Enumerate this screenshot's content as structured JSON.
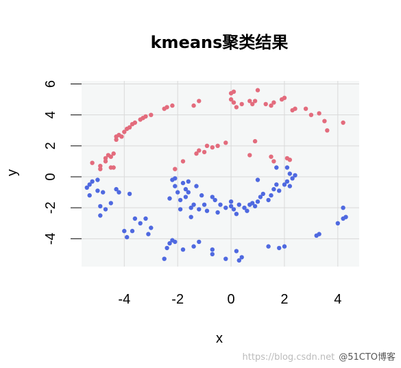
{
  "chart_data": {
    "type": "scatter",
    "title": "kmeans聚类结果",
    "xlabel": "x",
    "ylabel": "y",
    "xlim": [
      -5.6,
      4.8
    ],
    "ylim": [
      -5.8,
      6.2
    ],
    "xticks": [
      -4,
      -2,
      0,
      2,
      4
    ],
    "yticks": [
      -4,
      -2,
      0,
      2,
      4,
      6
    ],
    "grid": true,
    "series": [
      {
        "color": "#E36C7D",
        "points": [
          [
            -5.2,
            0.9
          ],
          [
            -4.9,
            0.5
          ],
          [
            -4.9,
            0.7
          ],
          [
            -4.7,
            1.0
          ],
          [
            -4.7,
            1.2
          ],
          [
            -4.6,
            1.4
          ],
          [
            -4.5,
            1.3
          ],
          [
            -4.4,
            1.5
          ],
          [
            -4.5,
            0.6
          ],
          [
            -4.4,
            0.6
          ],
          [
            -4.3,
            2.4
          ],
          [
            -4.3,
            2.6
          ],
          [
            -4.2,
            2.7
          ],
          [
            -4.1,
            2.6
          ],
          [
            -4.0,
            2.9
          ],
          [
            -3.9,
            3.1
          ],
          [
            -3.8,
            3.2
          ],
          [
            -3.7,
            3.4
          ],
          [
            -3.6,
            3.5
          ],
          [
            -3.4,
            3.7
          ],
          [
            -3.3,
            3.8
          ],
          [
            -3.2,
            3.9
          ],
          [
            -3.0,
            4.0
          ],
          [
            -2.5,
            4.4
          ],
          [
            -2.4,
            4.5
          ],
          [
            -2.2,
            4.6
          ],
          [
            -1.4,
            4.6
          ],
          [
            -1.2,
            4.9
          ],
          [
            -1.3,
            1.5
          ],
          [
            -1.2,
            1.7
          ],
          [
            -1.0,
            1.6
          ],
          [
            -0.9,
            2.0
          ],
          [
            -0.7,
            1.9
          ],
          [
            -0.5,
            2.0
          ],
          [
            -0.2,
            2.2
          ],
          [
            -1.8,
            1.0
          ],
          [
            -2.1,
            0.5
          ],
          [
            0.0,
            5.4
          ],
          [
            0.0,
            5.0
          ],
          [
            0.1,
            5.5
          ],
          [
            0.1,
            4.8
          ],
          [
            0.2,
            4.5
          ],
          [
            0.4,
            4.7
          ],
          [
            0.7,
            4.9
          ],
          [
            0.8,
            4.7
          ],
          [
            0.9,
            4.9
          ],
          [
            1.0,
            5.6
          ],
          [
            1.3,
            4.7
          ],
          [
            1.5,
            4.6
          ],
          [
            1.6,
            4.8
          ],
          [
            1.9,
            5.0
          ],
          [
            2.0,
            5.1
          ],
          [
            2.3,
            4.3
          ],
          [
            2.4,
            4.4
          ],
          [
            2.8,
            4.4
          ],
          [
            3.0,
            4.0
          ],
          [
            3.3,
            4.1
          ],
          [
            3.5,
            3.6
          ],
          [
            3.6,
            3.0
          ],
          [
            4.2,
            3.5
          ],
          [
            0.9,
            2.3
          ],
          [
            1.5,
            1.3
          ],
          [
            1.6,
            1.0
          ],
          [
            2.1,
            1.2
          ],
          [
            2.2,
            1.1
          ],
          [
            0.7,
            1.4
          ]
        ]
      },
      {
        "color": "#4F69E0",
        "points": [
          [
            -5.4,
            -0.7
          ],
          [
            -5.3,
            -0.5
          ],
          [
            -5.2,
            -0.3
          ],
          [
            -5.0,
            -0.2
          ],
          [
            -5.0,
            -0.9
          ],
          [
            -5.3,
            -1.2
          ],
          [
            -4.8,
            -1.0
          ],
          [
            -4.9,
            -1.9
          ],
          [
            -4.7,
            -2.1
          ],
          [
            -4.9,
            -2.5
          ],
          [
            -4.5,
            -1.7
          ],
          [
            -4.3,
            -0.8
          ],
          [
            -4.2,
            -1.0
          ],
          [
            -3.8,
            -1.1
          ],
          [
            -3.6,
            -2.7
          ],
          [
            -3.4,
            -3.0
          ],
          [
            -3.2,
            -2.7
          ],
          [
            -3.0,
            -3.3
          ],
          [
            -3.1,
            -3.7
          ],
          [
            -3.7,
            -3.5
          ],
          [
            -4.0,
            -3.5
          ],
          [
            -3.9,
            -3.9
          ],
          [
            -2.5,
            -5.3
          ],
          [
            -2.4,
            -4.6
          ],
          [
            -2.3,
            -4.3
          ],
          [
            -2.2,
            -4.1
          ],
          [
            -2.1,
            -4.2
          ],
          [
            -1.8,
            -4.7
          ],
          [
            -1.4,
            -4.5
          ],
          [
            -1.2,
            -4.2
          ],
          [
            -0.7,
            -4.7
          ],
          [
            -0.7,
            -5.0
          ],
          [
            -0.2,
            -5.3
          ],
          [
            0.2,
            -4.8
          ],
          [
            0.3,
            -5.4
          ],
          [
            0.4,
            -5.2
          ],
          [
            1.4,
            -4.5
          ],
          [
            1.8,
            -4.6
          ],
          [
            2.0,
            -4.5
          ],
          [
            3.2,
            -3.8
          ],
          [
            3.3,
            -3.7
          ],
          [
            4.0,
            -3.0
          ],
          [
            4.2,
            -2.7
          ],
          [
            4.3,
            -2.6
          ],
          [
            4.2,
            -2.0
          ],
          [
            -2.2,
            -0.2
          ],
          [
            -2.1,
            -0.6
          ],
          [
            -2.0,
            -1.0
          ],
          [
            -1.9,
            -1.5
          ],
          [
            -1.8,
            -0.4
          ],
          [
            -1.6,
            -0.3
          ],
          [
            -1.6,
            -1.0
          ],
          [
            -1.5,
            -2.0
          ],
          [
            -1.3,
            -0.6
          ],
          [
            -1.1,
            -1.2
          ],
          [
            -1.0,
            -1.8
          ],
          [
            -0.9,
            -2.2
          ],
          [
            -0.7,
            -1.3
          ],
          [
            -0.6,
            -1.5
          ],
          [
            -0.5,
            -2.3
          ],
          [
            -0.4,
            -1.8
          ],
          [
            -0.2,
            -2.0
          ],
          [
            0.0,
            -1.6
          ],
          [
            0.1,
            -2.1
          ],
          [
            0.2,
            -2.4
          ],
          [
            0.3,
            -1.8
          ],
          [
            0.5,
            -2.0
          ],
          [
            0.6,
            -2.2
          ],
          [
            0.8,
            -1.7
          ],
          [
            0.9,
            -1.9
          ],
          [
            1.0,
            -1.6
          ],
          [
            1.1,
            -1.3
          ],
          [
            1.2,
            -1.1
          ],
          [
            1.4,
            -1.5
          ],
          [
            1.5,
            -1.2
          ],
          [
            1.6,
            -0.8
          ],
          [
            1.7,
            -0.5
          ],
          [
            1.8,
            -0.9
          ],
          [
            2.0,
            -0.5
          ],
          [
            2.1,
            -0.3
          ],
          [
            2.2,
            -0.6
          ],
          [
            2.3,
            -0.1
          ],
          [
            2.2,
            0.2
          ],
          [
            2.1,
            0.6
          ],
          [
            1.7,
            0.6
          ],
          [
            2.4,
            0.1
          ],
          [
            -1.7,
            -1.3
          ],
          [
            -1.4,
            -1.8
          ],
          [
            -1.2,
            -2.1
          ],
          [
            0.0,
            -1.9
          ],
          [
            -2.3,
            -1.4
          ],
          [
            -1.9,
            -2.1
          ],
          [
            -1.5,
            -2.6
          ],
          [
            -2.1,
            -0.1
          ],
          [
            -1.7,
            -0.8
          ],
          [
            0.7,
            -1.8
          ],
          [
            1.0,
            -0.2
          ]
        ]
      }
    ]
  },
  "watermark": {
    "url": "https://blog.csdn.net",
    "brand": "@51CTO博客"
  }
}
